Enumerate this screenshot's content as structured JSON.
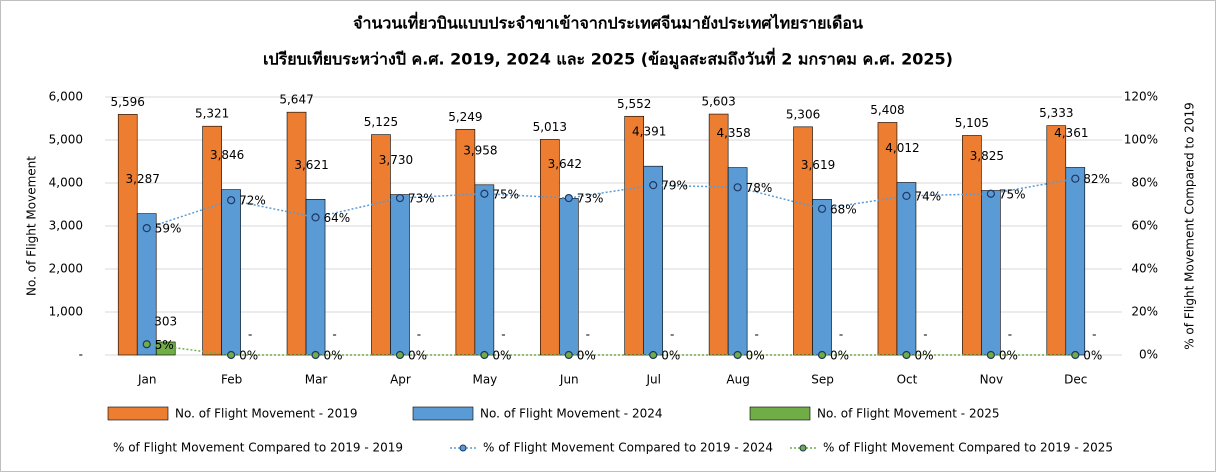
{
  "chart_data": {
    "type": "combo",
    "title": "จำนวนเที่ยวบินแบบประจำขาเข้าจากประเทศจีนมายังประเทศไทยรายเดือน",
    "subtitle": "เปรียบเทียบระหว่างปี ค.ศ. 2019, 2024 และ 2025 (ข้อมูลสะสมถึงวันที่ 2 มกราคม ค.ศ. 2025)",
    "ylabel": "No. of Flight Movement",
    "y2label": "% of Flight Movement Compared to 2019",
    "categories": [
      "Jan",
      "Feb",
      "Mar",
      "Apr",
      "May",
      "Jun",
      "Jul",
      "Aug",
      "Sep",
      "Oct",
      "Nov",
      "Dec"
    ],
    "ylim": [
      0,
      6000
    ],
    "yticks": [
      {
        "value": 0,
        "label": "-"
      },
      {
        "value": 1000,
        "label": "1,000"
      },
      {
        "value": 2000,
        "label": "2,000"
      },
      {
        "value": 3000,
        "label": "3,000"
      },
      {
        "value": 4000,
        "label": "4,000"
      },
      {
        "value": 5000,
        "label": "5,000"
      },
      {
        "value": 6000,
        "label": "6,000"
      }
    ],
    "y2lim": [
      0,
      120
    ],
    "y2ticks": [
      {
        "value": 0,
        "label": "0%"
      },
      {
        "value": 20,
        "label": "20%"
      },
      {
        "value": 40,
        "label": "40%"
      },
      {
        "value": 60,
        "label": "60%"
      },
      {
        "value": 80,
        "label": "80%"
      },
      {
        "value": 100,
        "label": "100%"
      },
      {
        "value": 120,
        "label": "120%"
      }
    ],
    "grid": true,
    "legend": "bottom",
    "series": [
      {
        "name": "No. of Flight Movement - 2019",
        "type": "bar",
        "color": "#ed7d31",
        "values": [
          5596,
          5321,
          5647,
          5125,
          5249,
          5013,
          5552,
          5603,
          5306,
          5408,
          5105,
          5333
        ],
        "value_labels": [
          "5,596",
          "5,321",
          "5,647",
          "5,125",
          "5,249",
          "5,013",
          "5,552",
          "5,603",
          "5,306",
          "5,408",
          "5,105",
          "5,333"
        ]
      },
      {
        "name": "No. of Flight Movement - 2024",
        "type": "bar",
        "color": "#5b9bd5",
        "values": [
          3287,
          3846,
          3621,
          3730,
          3958,
          3642,
          4391,
          4358,
          3619,
          4012,
          3825,
          4361
        ],
        "value_labels": [
          "3,287",
          "3,846",
          "3,621",
          "3,730",
          "3,958",
          "3,642",
          "4,391",
          "4,358",
          "3,619",
          "4,012",
          "3,825",
          "4,361"
        ]
      },
      {
        "name": "No. of Flight Movement - 2025",
        "type": "bar",
        "color": "#70ad47",
        "values": [
          303,
          0,
          0,
          0,
          0,
          0,
          0,
          0,
          0,
          0,
          0,
          0
        ],
        "value_labels": [
          "303",
          "-",
          "-",
          "-",
          "-",
          "-",
          "-",
          "-",
          "-",
          "-",
          "-",
          "-"
        ]
      },
      {
        "name": "% of Flight Movement Compared to 2019 - 2019",
        "type": "line",
        "axis": "y2",
        "color": "#ed7d31",
        "values": [
          null,
          null,
          null,
          null,
          null,
          null,
          null,
          null,
          null,
          null,
          null,
          null
        ]
      },
      {
        "name": "% of Flight Movement Compared to 2019 - 2024",
        "type": "line",
        "axis": "y2",
        "color": "#5b9bd5",
        "values": [
          59,
          72,
          64,
          73,
          75,
          73,
          79,
          78,
          68,
          74,
          75,
          82
        ],
        "value_labels": [
          "59%",
          "72%",
          "64%",
          "73%",
          "75%",
          "73%",
          "79%",
          "78%",
          "68%",
          "74%",
          "75%",
          "82%"
        ]
      },
      {
        "name": "% of Flight Movement Compared to 2019 - 2025",
        "type": "line",
        "axis": "y2",
        "color": "#70ad47",
        "values": [
          5,
          0,
          0,
          0,
          0,
          0,
          0,
          0,
          0,
          0,
          0,
          0
        ],
        "value_labels": [
          "5%",
          "0%",
          "0%",
          "0%",
          "0%",
          "0%",
          "0%",
          "0%",
          "0%",
          "0%",
          "0%",
          "0%"
        ]
      }
    ]
  }
}
